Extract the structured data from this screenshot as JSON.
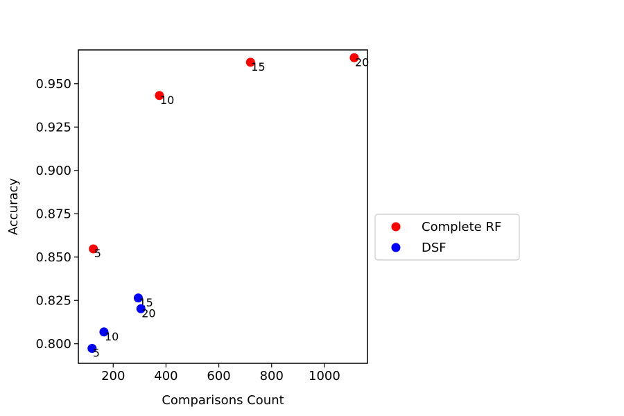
{
  "chart_data": {
    "type": "scatter",
    "title": "",
    "xlabel": "Comparisons Count",
    "ylabel": "Accuracy",
    "xlim": [
      68,
      1163
    ],
    "ylim": [
      0.7887,
      0.9695
    ],
    "xticks": [
      200,
      400,
      600,
      800,
      1000
    ],
    "yticks": [
      0.8,
      0.825,
      0.85,
      0.875,
      0.9,
      0.925,
      0.95
    ],
    "ytick_labels": [
      "0.800",
      "0.825",
      "0.850",
      "0.875",
      "0.900",
      "0.925",
      "0.950"
    ],
    "grid": false,
    "legend_position": "right-outside",
    "series": [
      {
        "name": "Complete RF",
        "color": "#ff0000",
        "points": [
          {
            "x": 125,
            "y": 0.8547,
            "label": "5"
          },
          {
            "x": 375,
            "y": 0.9432,
            "label": "10"
          },
          {
            "x": 720,
            "y": 0.9624,
            "label": "15"
          },
          {
            "x": 1113,
            "y": 0.965,
            "label": "20"
          }
        ]
      },
      {
        "name": "DSF",
        "color": "#0000ff",
        "points": [
          {
            "x": 120,
            "y": 0.7973,
            "label": "5"
          },
          {
            "x": 165,
            "y": 0.8068,
            "label": "10"
          },
          {
            "x": 295,
            "y": 0.8264,
            "label": "15"
          },
          {
            "x": 305,
            "y": 0.8202,
            "label": "20"
          }
        ]
      }
    ]
  }
}
